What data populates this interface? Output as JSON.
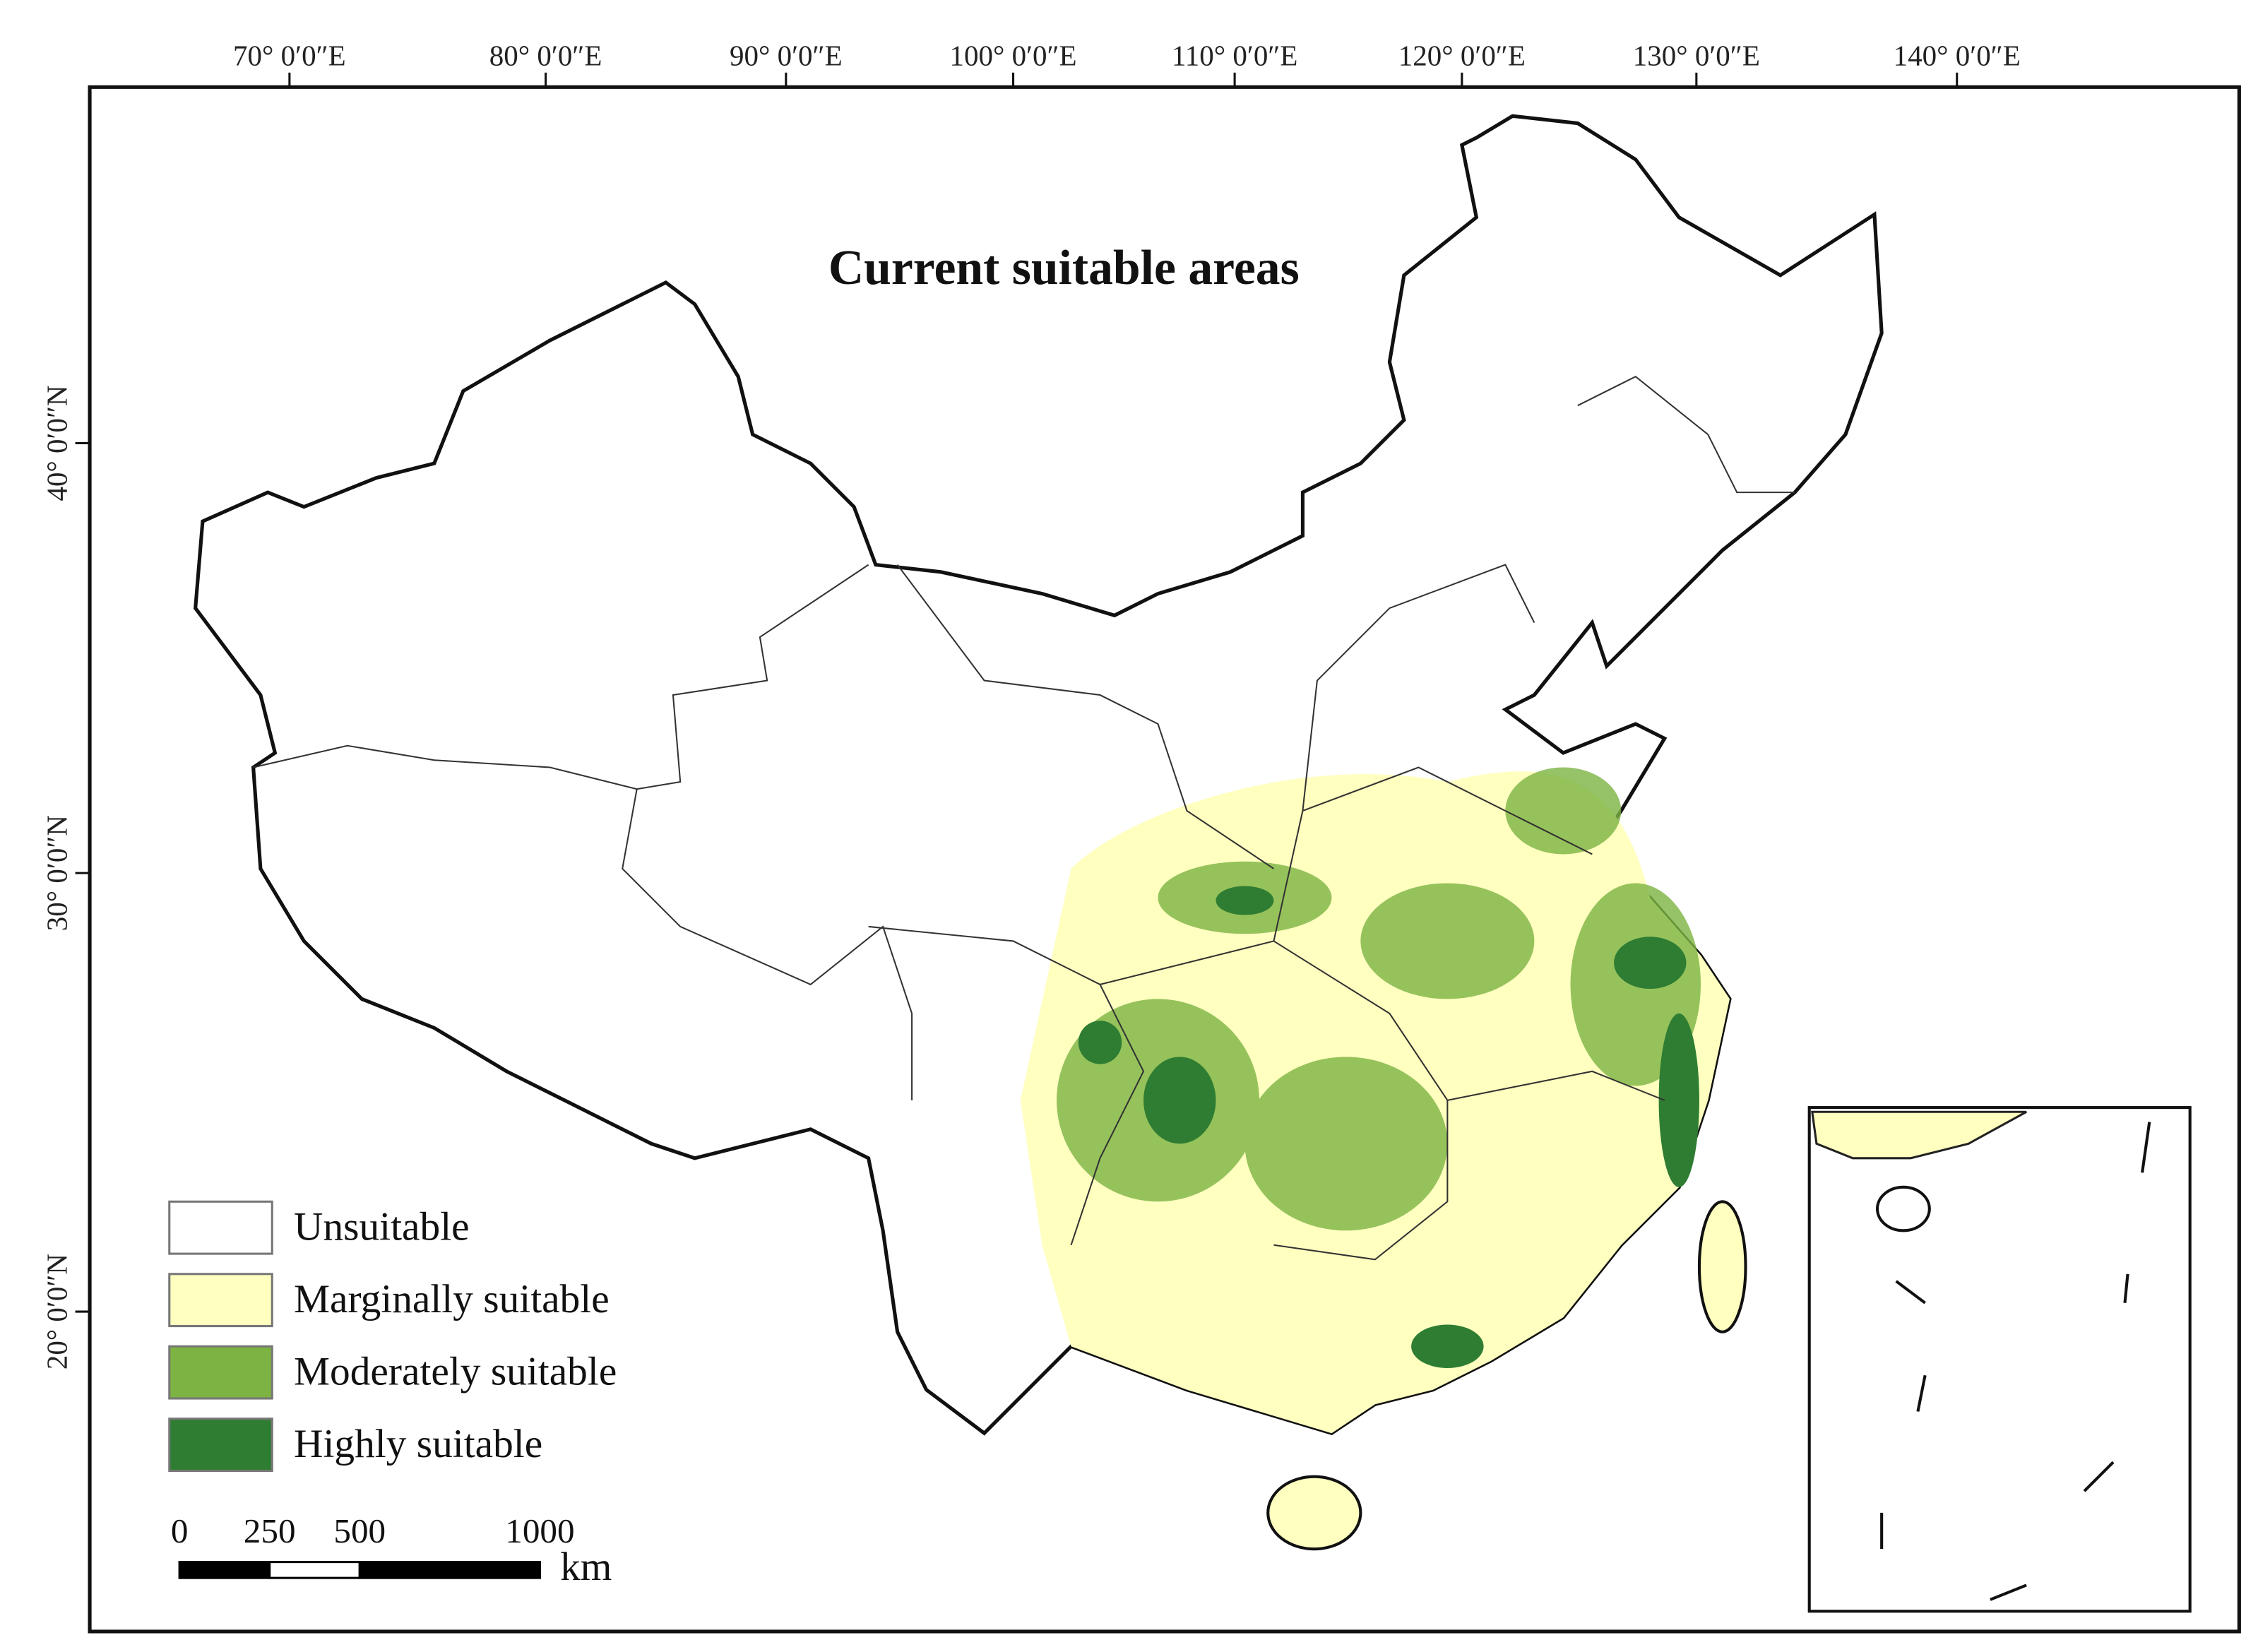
{
  "title": "Current suitable areas",
  "longitude_labels": [
    "70° 0′0″E",
    "80° 0′0″E",
    "90° 0′0″E",
    "100° 0′0″E",
    "110° 0′0″E",
    "120° 0′0″E",
    "130° 0′0″E",
    "140° 0′0″E"
  ],
  "latitude_labels": [
    "40° 0′0″N",
    "30° 0′0″N",
    "20° 0′0″N"
  ],
  "legend": [
    {
      "label": "Unsuitable",
      "color": "#ffffff"
    },
    {
      "label": "Marginally suitable",
      "color": "#ffffc0"
    },
    {
      "label": "Moderately suitable",
      "color": "#7cb342"
    },
    {
      "label": "Highly suitable",
      "color": "#2e7d32"
    }
  ],
  "scale_bar": {
    "ticks": [
      0,
      250,
      500,
      1000
    ],
    "unit": "km"
  }
}
